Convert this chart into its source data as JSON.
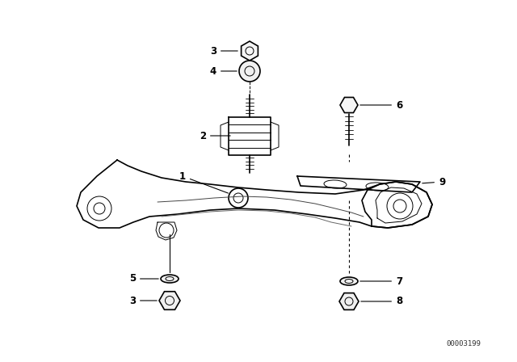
{
  "background_color": "#ffffff",
  "line_color": "#000000",
  "text_color": "#000000",
  "watermark": "00003199",
  "fig_w": 6.4,
  "fig_h": 4.48,
  "dpi": 100
}
